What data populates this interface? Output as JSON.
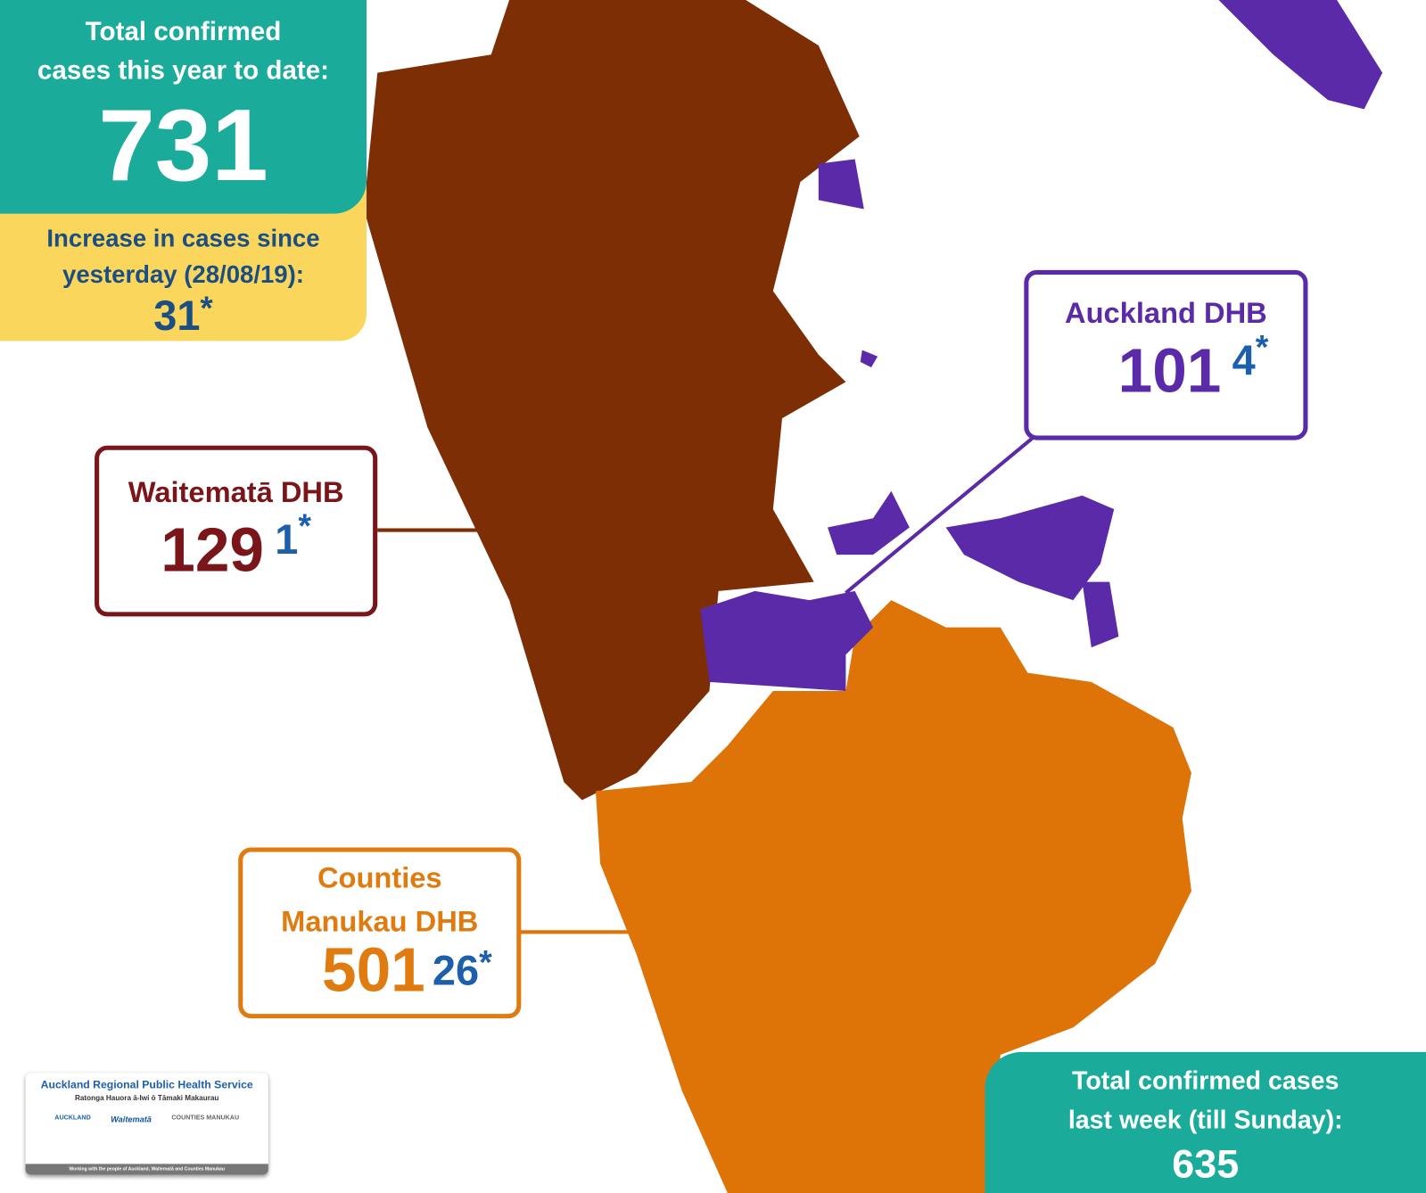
{
  "total_box": {
    "title_lines": [
      "Total confirmed",
      "cases this year to date:"
    ],
    "value": 731
  },
  "increase_box": {
    "title_lines": [
      "Increase in cases since",
      "yesterday (28/08/19):"
    ],
    "value": 31,
    "mark": "*"
  },
  "regions": [
    {
      "name_lines": [
        "Waitematā DHB"
      ],
      "cases": 129,
      "increase": 1,
      "mark": "*"
    },
    {
      "name_lines": [
        "Auckland DHB"
      ],
      "cases": 101,
      "increase": 4,
      "mark": "*"
    },
    {
      "name_lines": [
        "Counties",
        "Manukau DHB"
      ],
      "cases": 501,
      "increase": 26,
      "mark": "*"
    }
  ],
  "week_box": {
    "title_lines": [
      "Total confirmed cases",
      "last week (till Sunday):"
    ],
    "value": 635
  },
  "logo_panel": {
    "title": "Auckland Regional Public Health Service",
    "subtitle": "Ratonga Hauora ā-Iwi ō Tāmaki Makaurau",
    "logos": [
      "AUCKLAND",
      "Waitematā",
      "COUNTIES MANUKAU"
    ],
    "tagline": "Working with the people of Auckland, Waitematā and Counties Manukau"
  }
}
